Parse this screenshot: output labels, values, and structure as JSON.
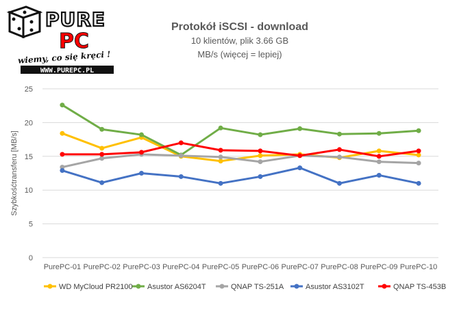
{
  "logo": {
    "brand_top": "PURE",
    "brand_bottom": "PC",
    "slogan": "wiemy, co się kręci !",
    "url": "WWW.PUREPC.PL"
  },
  "colors": {
    "wd": "#FFC000",
    "as6204t": "#70AD47",
    "ts251a": "#A5A5A5",
    "as3102t": "#4472C4",
    "ts453b": "#FF0000",
    "grid": "#D9D9D9",
    "text": "#595959"
  },
  "chart_data": {
    "type": "line",
    "title": "Protokół iSCSI - download",
    "subtitle": "10 klientów, plik 3.66 GB",
    "unit_note": "MB/s (więcej = lepiej)",
    "ylabel": "Szybkośćtransferu [MB/s]",
    "xlabel": "",
    "ylim": [
      0,
      25
    ],
    "yticks": [
      0,
      5,
      10,
      15,
      20,
      25
    ],
    "grid": true,
    "legend_position": "bottom",
    "categories": [
      "PurePC-01",
      "PurePC-02",
      "PurePC-03",
      "PurePC-04",
      "PurePC-05",
      "PurePC-06",
      "PurePC-07",
      "PurePC-08",
      "PurePC-09",
      "PurePC-10"
    ],
    "series": [
      {
        "name": "WD MyCloud PR2100",
        "color_key": "wd",
        "values": [
          18.4,
          16.2,
          17.8,
          15.0,
          14.3,
          15.1,
          15.3,
          14.8,
          15.8,
          15.2
        ]
      },
      {
        "name": "Asustor AS6204T",
        "color_key": "as6204t",
        "values": [
          22.6,
          19.0,
          18.2,
          15.2,
          19.2,
          18.2,
          19.1,
          18.3,
          18.4,
          18.8
        ]
      },
      {
        "name": "QNAP TS-251A",
        "color_key": "ts251a",
        "values": [
          13.4,
          14.7,
          15.3,
          15.1,
          14.9,
          14.2,
          15.1,
          14.9,
          14.2,
          14.0
        ]
      },
      {
        "name": "Asustor AS3102T",
        "color_key": "as3102t",
        "values": [
          12.9,
          11.1,
          12.5,
          12.0,
          11.0,
          12.0,
          13.3,
          11.0,
          12.2,
          11.0
        ]
      },
      {
        "name": "QNAP TS-453B",
        "color_key": "ts453b",
        "values": [
          15.3,
          15.3,
          15.6,
          17.0,
          15.9,
          15.8,
          15.1,
          16.0,
          15.0,
          15.8
        ]
      }
    ]
  }
}
